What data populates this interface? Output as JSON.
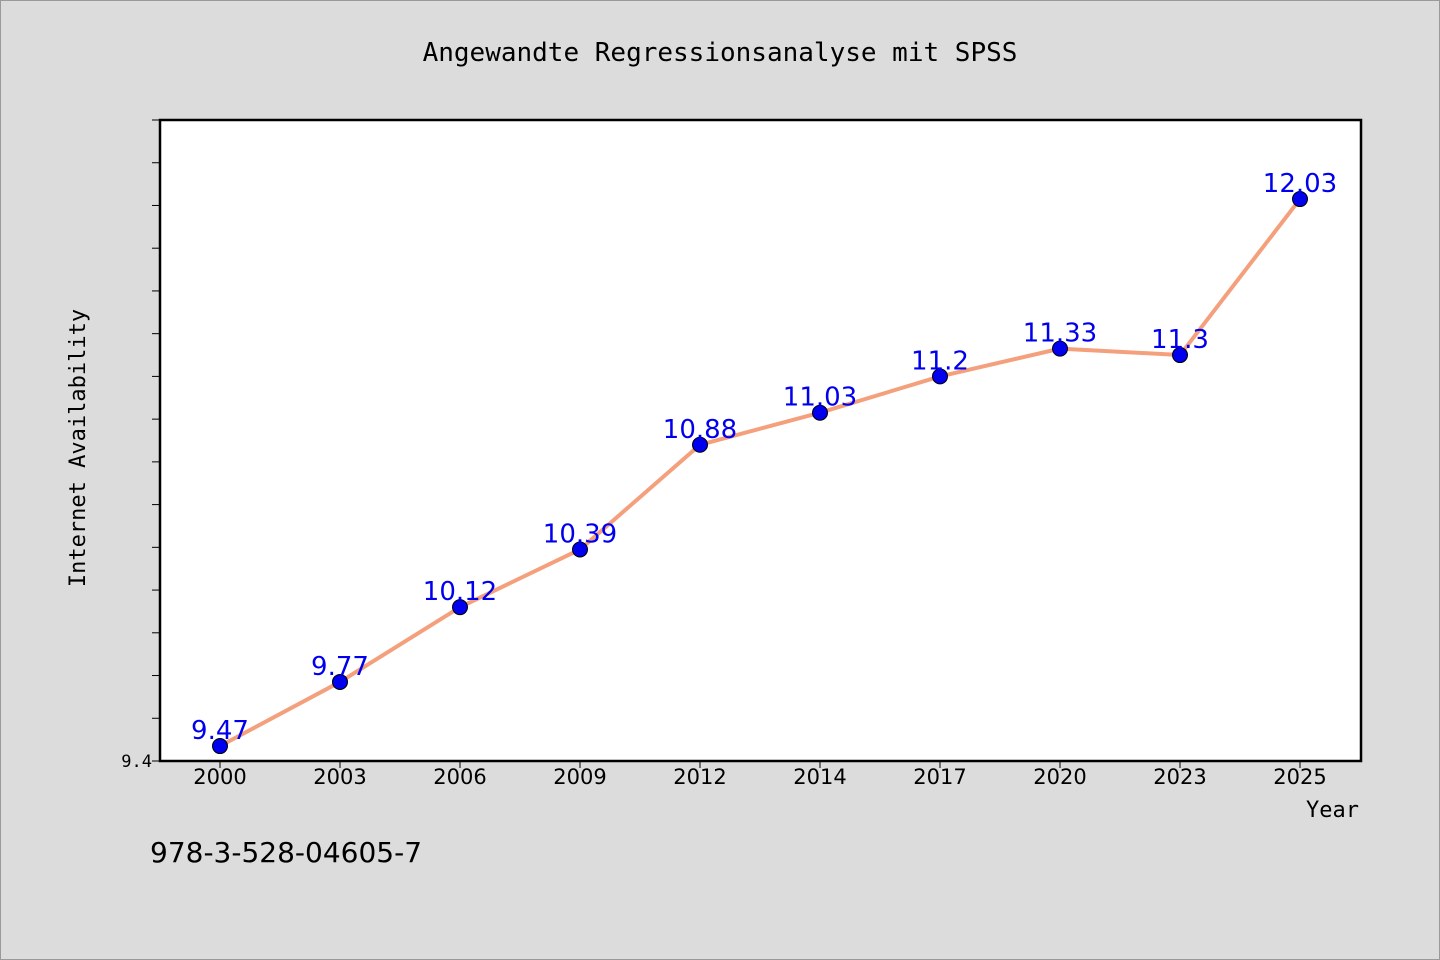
{
  "chart_data": {
    "type": "line",
    "title": "Angewandte Regressionsanalyse mit SPSS",
    "xlabel": "Year",
    "ylabel": "Internet Availability",
    "categories": [
      "2000",
      "2003",
      "2006",
      "2009",
      "2012",
      "2014",
      "2017",
      "2020",
      "2023",
      "2025"
    ],
    "series": [
      {
        "values": [
          9.47,
          9.77,
          10.12,
          10.39,
          10.88,
          11.03,
          11.2,
          11.33,
          11.3,
          12.03
        ],
        "labels": [
          "9.47",
          "9.77",
          "10.12",
          "10.39",
          "10.88",
          "11.03",
          "11.2",
          "11.33",
          "11.3",
          "12.03"
        ],
        "line_color": "#f4a07c",
        "marker_color": "#0000ee",
        "label_color": "#0000ee"
      }
    ],
    "ylim": [
      9.4,
      12.4
    ],
    "y_tick_labels": [
      "9.4"
    ],
    "grid": false,
    "legend": "none"
  },
  "footer_text": "978-3-528-04605-7"
}
